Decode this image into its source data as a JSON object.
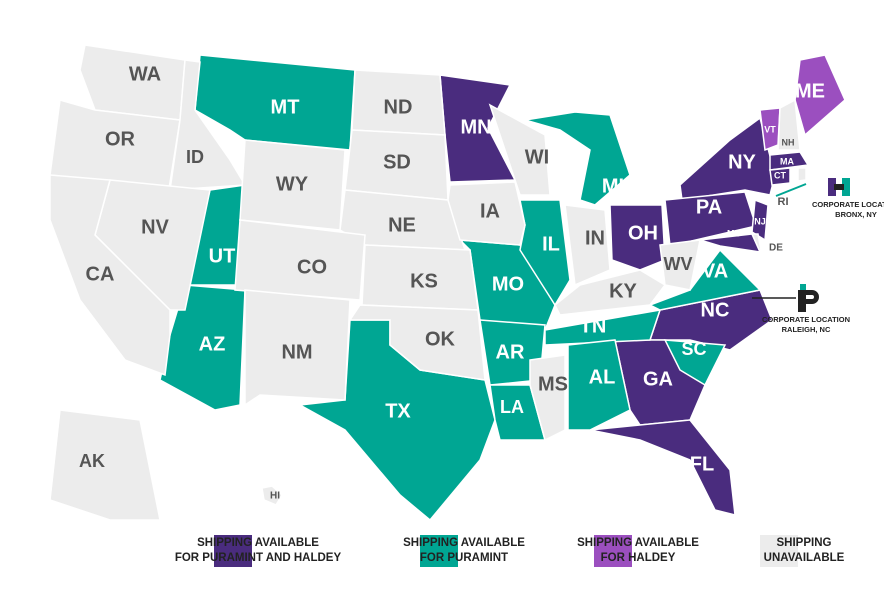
{
  "legend": [
    {
      "lines": [
        "SHIPPING AVAILABLE",
        "FOR PURAMINT AND HALDEY"
      ],
      "color": "#4a2c7e",
      "states": [
        "MN",
        "NY",
        "PA",
        "OH",
        "NC",
        "GA",
        "FL",
        "MA",
        "CT",
        "NJ",
        "MD"
      ]
    },
    {
      "lines": [
        "SHIPPING AVAILABLE",
        "FOR PURAMINT"
      ],
      "color": "#00a693",
      "states": [
        "MT",
        "UT",
        "AZ",
        "TX",
        "MO",
        "AR",
        "LA",
        "IL",
        "MI",
        "TN",
        "AL",
        "SC",
        "VA"
      ]
    },
    {
      "lines": [
        "SHIPPING AVAILABLE",
        "FOR HALDEY"
      ],
      "color": "#9b4fbf",
      "states": [
        "ME",
        "VT"
      ]
    },
    {
      "lines": [
        "SHIPPING",
        "UNAVAILABLE"
      ],
      "color": "#ececec",
      "states": [
        "WA",
        "OR",
        "ID",
        "NV",
        "CA",
        "WY",
        "ND",
        "SD",
        "NE",
        "CO",
        "KS",
        "NM",
        "OK",
        "IA",
        "WI",
        "IN",
        "KY",
        "WV",
        "MS",
        "DE",
        "NH",
        "RI",
        "AK",
        "HI"
      ]
    }
  ],
  "locations": [
    {
      "lines": [
        "CORPORATE LOCATION",
        "BRONX, NY"
      ]
    },
    {
      "lines": [
        "CORPORATE LOCATION",
        "RALEIGH, NC"
      ]
    }
  ]
}
